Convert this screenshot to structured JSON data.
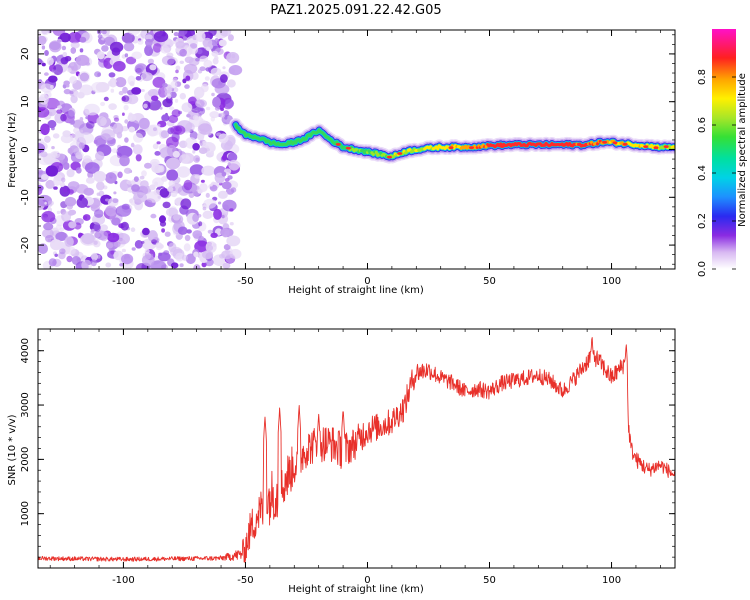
{
  "title": "PAZ1.2025.091.22.42.G05",
  "colors": {
    "snr_line": "#e8302a",
    "noise": "#8a2be2",
    "frame": "#000000"
  },
  "chart_data": [
    {
      "type": "heatmap",
      "xlabel": "Height of straight line (km)",
      "ylabel": "Frequency (Hz)",
      "xlim": [
        -135,
        126
      ],
      "ylim": [
        -25,
        25
      ],
      "xticks": [
        "-100",
        "-50",
        "0",
        "50",
        "100"
      ],
      "yticks": [
        "-20",
        "-10",
        "0",
        "10",
        "20"
      ],
      "noise_region_x": [
        -135,
        -54
      ],
      "ridge": {
        "x": [
          -54,
          -50,
          -45,
          -40,
          -35,
          -30,
          -25,
          -20,
          -15,
          -10,
          -5,
          0,
          5,
          10,
          15,
          20,
          30,
          40,
          50,
          60,
          70,
          80,
          90,
          95,
          100,
          110,
          120,
          126
        ],
        "freq": [
          5,
          3,
          2.5,
          1.5,
          1,
          1.5,
          2.5,
          4,
          2,
          0.5,
          0,
          -0.5,
          -1,
          -1.5,
          -0.5,
          0,
          0.5,
          0.5,
          0.8,
          1,
          1,
          1,
          1,
          1.5,
          1.5,
          1,
          0.5,
          0.5
        ],
        "amp": [
          0.35,
          0.3,
          0.3,
          0.3,
          0.3,
          0.3,
          0.35,
          0.4,
          0.5,
          0.55,
          0.6,
          0.6,
          0.6,
          0.65,
          0.7,
          0.7,
          0.75,
          0.85,
          0.95,
          1,
          1,
          1,
          0.95,
          0.9,
          0.85,
          0.8,
          0.75,
          0.7
        ]
      },
      "colorbar": {
        "label": "Normalized spectral amplitude",
        "range": [
          0,
          1
        ],
        "ticks": [
          "0.0",
          "0.2",
          "0.4",
          "0.6",
          "0.8"
        ]
      }
    },
    {
      "type": "line",
      "xlabel": "Height of straight line (km)",
      "ylabel": "SNR (10 * v/v)",
      "xlim": [
        -135,
        126
      ],
      "ylim": [
        0,
        4400
      ],
      "xticks": [
        "-100",
        "-50",
        "0",
        "50",
        "100"
      ],
      "yticks": [
        "1000",
        "2000",
        "3000",
        "4000"
      ],
      "x": [
        -135,
        -120,
        -100,
        -80,
        -60,
        -52,
        -50,
        -48,
        -45,
        -42,
        -40,
        -38,
        -36,
        -34,
        -30,
        -25,
        -20,
        -15,
        -10,
        -5,
        0,
        5,
        10,
        15,
        18,
        20,
        25,
        30,
        35,
        40,
        45,
        50,
        55,
        60,
        65,
        70,
        75,
        80,
        85,
        90,
        92,
        95,
        100,
        104,
        106,
        107,
        108,
        110,
        115,
        120,
        126
      ],
      "y_trend": [
        180,
        170,
        160,
        170,
        180,
        250,
        380,
        700,
        1000,
        1100,
        1300,
        1400,
        1250,
        1600,
        1900,
        2200,
        2300,
        2300,
        2150,
        2300,
        2550,
        2600,
        2700,
        2950,
        3400,
        3600,
        3650,
        3500,
        3400,
        3250,
        3300,
        3250,
        3400,
        3450,
        3500,
        3550,
        3450,
        3250,
        3500,
        3800,
        3950,
        3800,
        3500,
        3700,
        3800,
        2600,
        2200,
        2000,
        1800,
        1900,
        1700
      ],
      "y_noise": [
        40,
        40,
        40,
        40,
        45,
        120,
        300,
        350,
        400,
        450,
        500,
        500,
        500,
        450,
        400,
        350,
        350,
        350,
        350,
        300,
        280,
        250,
        250,
        250,
        250,
        200,
        170,
        150,
        150,
        150,
        150,
        150,
        150,
        150,
        150,
        150,
        150,
        150,
        150,
        170,
        170,
        170,
        170,
        170,
        170,
        170,
        150,
        150,
        140,
        130,
        130
      ],
      "spikes": [
        {
          "x": -42,
          "y": 2800
        },
        {
          "x": -36,
          "y": 2950
        },
        {
          "x": -28,
          "y": 3000
        },
        {
          "x": -20,
          "y": 2850
        },
        {
          "x": -10,
          "y": 2950
        },
        {
          "x": 92,
          "y": 4300
        },
        {
          "x": 106,
          "y": 4150
        }
      ]
    }
  ]
}
